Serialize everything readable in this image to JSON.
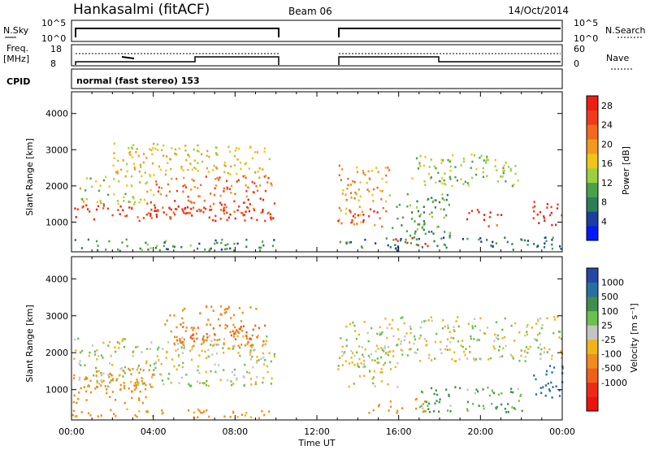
{
  "header": {
    "station": "Hankasalmi (fitACF)",
    "beam": "Beam 06",
    "date": "14/Oct/2014"
  },
  "panels": {
    "nsky_label": "N.Sky",
    "nsearch_label": "N.Search",
    "nsky_ticks": [
      "10^5",
      "10^0"
    ],
    "freq_label_1": "Freq.",
    "freq_label_2": "[MHz]",
    "freq_ticks": [
      "18",
      "8"
    ],
    "nave_label": "Nave",
    "nave_ticks": [
      "60",
      "0"
    ],
    "cpid_label": "CPID",
    "cpid_value": "normal (fast stereo) 153"
  },
  "colors": {
    "power": [
      "#0019ff",
      "#1b3ea0",
      "#2e7d57",
      "#48a24a",
      "#9bd13f",
      "#f1c418",
      "#f39a1c",
      "#f36a1c",
      "#f03b1b",
      "#ef1d12"
    ],
    "velocity": [
      "#2249a5",
      "#2a6fa2",
      "#3f8f4c",
      "#6bc14b",
      "#c4c4c2",
      "#f0b418",
      "#f08c1b",
      "#f0601a",
      "#ee2a16",
      "#ef1010"
    ]
  },
  "chart_data": [
    {
      "type": "heatmap",
      "name": "Power",
      "xlabel": "",
      "ylabel": "Slant Range [km]",
      "xlim": [
        0,
        24
      ],
      "ylim": [
        180,
        4600
      ],
      "ytick_labels": [
        "1000",
        "2000",
        "3000",
        "4000"
      ],
      "colorbar_label": "Power [dB]",
      "colorbar_ticks": [
        "4",
        "8",
        "12",
        "16",
        "20",
        "24",
        "28"
      ],
      "colorbar_range": [
        0,
        30
      ],
      "data_gap_hours": [
        10,
        13
      ],
      "blobs": [
        {
          "t": [
            0.0,
            9.9
          ],
          "r": [
            1050,
            1500
          ],
          "v": 27
        },
        {
          "t": [
            0.2,
            4.0
          ],
          "r": [
            1500,
            2300
          ],
          "v": 15
        },
        {
          "t": [
            3.5,
            9.9
          ],
          "r": [
            1200,
            1700
          ],
          "v": 25
        },
        {
          "t": [
            4.0,
            9.9
          ],
          "r": [
            1700,
            2300
          ],
          "v": 23
        },
        {
          "t": [
            2.0,
            9.8
          ],
          "r": [
            2300,
            3200
          ],
          "v": 17
        },
        {
          "t": [
            0.0,
            9.9
          ],
          "r": [
            230,
            550
          ],
          "v": 9
        },
        {
          "t": [
            13.0,
            15.5
          ],
          "r": [
            900,
            2600
          ],
          "v": 20
        },
        {
          "t": [
            13.0,
            15.0
          ],
          "r": [
            1000,
            1400
          ],
          "v": 28
        },
        {
          "t": [
            15.5,
            18.5
          ],
          "r": [
            600,
            1800
          ],
          "v": 10
        },
        {
          "t": [
            15.8,
            17.5
          ],
          "r": [
            350,
            600
          ],
          "v": 28
        },
        {
          "t": [
            19.3,
            21.0
          ],
          "r": [
            900,
            1400
          ],
          "v": 27
        },
        {
          "t": [
            16.5,
            22.0
          ],
          "r": [
            2000,
            2900
          ],
          "v": 13
        },
        {
          "t": [
            22.5,
            24.0
          ],
          "r": [
            900,
            1600
          ],
          "v": 26
        },
        {
          "t": [
            13.0,
            24.0
          ],
          "r": [
            250,
            600
          ],
          "v": 8
        }
      ]
    },
    {
      "type": "heatmap",
      "name": "Velocity",
      "xlabel": "Time UT",
      "ylabel": "Slant Range [km]",
      "xlim": [
        0,
        24
      ],
      "ylim": [
        180,
        4600
      ],
      "xtick_labels": [
        "00:00",
        "04:00",
        "08:00",
        "12:00",
        "16:00",
        "20:00",
        "00:00"
      ],
      "ytick_labels": [
        "1000",
        "2000",
        "3000",
        "4000"
      ],
      "colorbar_label": "Velocity [m s⁻¹]",
      "colorbar_ticks": [
        "1000",
        "500",
        "100",
        "25",
        "-25",
        "-100",
        "-500",
        "-1000"
      ],
      "data_gap_hours": [
        10,
        13
      ],
      "blobs": [
        {
          "t": [
            0.0,
            9.9
          ],
          "r": [
            1100,
            2500
          ],
          "v": 0
        },
        {
          "t": [
            0.0,
            4.0
          ],
          "r": [
            650,
            1600
          ],
          "v": -200
        },
        {
          "t": [
            4.5,
            9.0
          ],
          "r": [
            2200,
            3300
          ],
          "v": -400
        },
        {
          "t": [
            5.0,
            9.5
          ],
          "r": [
            2300,
            2800
          ],
          "v": -800
        },
        {
          "t": [
            0.0,
            9.9
          ],
          "r": [
            250,
            500
          ],
          "v": -150
        },
        {
          "t": [
            13.0,
            16.0
          ],
          "r": [
            1100,
            2200
          ],
          "v": 0
        },
        {
          "t": [
            14.5,
            17.5
          ],
          "r": [
            350,
            800
          ],
          "v": -300
        },
        {
          "t": [
            17.0,
            22.0
          ],
          "r": [
            400,
            1100
          ],
          "v": 100
        },
        {
          "t": [
            22.5,
            24.0
          ],
          "r": [
            800,
            1700
          ],
          "v": 600
        },
        {
          "t": [
            13.0,
            24.0
          ],
          "r": [
            1800,
            3000
          ],
          "v": 0
        }
      ]
    }
  ]
}
